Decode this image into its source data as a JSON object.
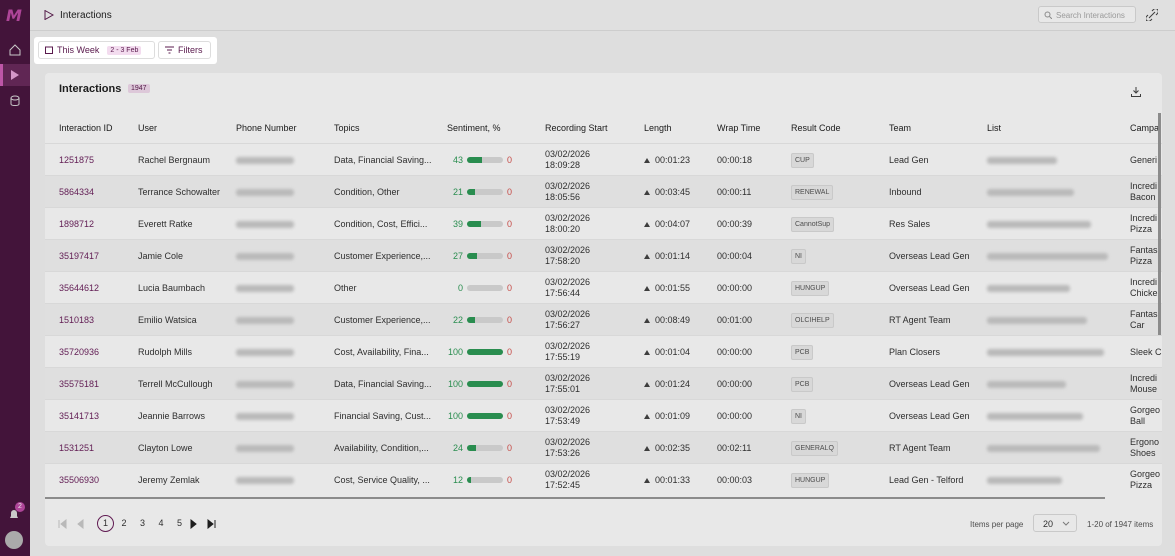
{
  "sidebar": {
    "logo": "M",
    "notification_count": "2"
  },
  "header": {
    "title": "Interactions",
    "search_placeholder": "Search Interactions"
  },
  "toolbar": {
    "date_button": "This Week",
    "date_range": "2 - 3 Feb",
    "filters_button": "Filters"
  },
  "card": {
    "title": "Interactions",
    "count": "1947"
  },
  "table": {
    "columns": [
      "Interaction ID",
      "User",
      "Phone Number",
      "Topics",
      "Sentiment, %",
      "Recording Start",
      "Length",
      "Wrap Time",
      "Result Code",
      "Team",
      "List",
      "Campa"
    ],
    "rows": [
      {
        "id": "1251875",
        "user": "Rachel Bergnaum",
        "topics": "Data, Financial Saving...",
        "sentiment_positive": 43,
        "sentiment_negative": 0,
        "recording_start": "03/02/2026 18:09:28",
        "length": "00:01:23",
        "wrap_time": "00:00:18",
        "result_code": "CUP",
        "team": "Lead Gen",
        "campaign": "Generi"
      },
      {
        "id": "5864334",
        "user": "Terrance Schowalter",
        "topics": "Condition, Other",
        "sentiment_positive": 21,
        "sentiment_negative": 0,
        "recording_start": "03/02/2026 18:05:56",
        "length": "00:03:45",
        "wrap_time": "00:00:11",
        "result_code": "RENEWAL",
        "team": "Inbound",
        "campaign": "Incredi Bacon"
      },
      {
        "id": "1898712",
        "user": "Everett Ratke",
        "topics": "Condition, Cost, Effici...",
        "sentiment_positive": 39,
        "sentiment_negative": 0,
        "recording_start": "03/02/2026 18:00:20",
        "length": "00:04:07",
        "wrap_time": "00:00:39",
        "result_code": "CannotSup",
        "team": "Res Sales",
        "campaign": "Incredi Pizza"
      },
      {
        "id": "35197417",
        "user": "Jamie Cole",
        "topics": "Customer Experience,...",
        "sentiment_positive": 27,
        "sentiment_negative": 0,
        "recording_start": "03/02/2026 17:58:20",
        "length": "00:01:14",
        "wrap_time": "00:00:04",
        "result_code": "NI",
        "team": "Overseas Lead Gen",
        "campaign": "Fantas Pizza"
      },
      {
        "id": "35644612",
        "user": "Lucia Baumbach",
        "topics": "Other",
        "sentiment_positive": 0,
        "sentiment_negative": 0,
        "recording_start": "03/02/2026 17:56:44",
        "length": "00:01:55",
        "wrap_time": "00:00:00",
        "result_code": "HUNGUP",
        "team": "Overseas Lead Gen",
        "campaign": "Incredi Chicke"
      },
      {
        "id": "1510183",
        "user": "Emilio Watsica",
        "topics": "Customer Experience,...",
        "sentiment_positive": 22,
        "sentiment_negative": 0,
        "recording_start": "03/02/2026 17:56:27",
        "length": "00:08:49",
        "wrap_time": "00:01:00",
        "result_code": "OLCIHELP",
        "team": "RT Agent Team",
        "campaign": "Fantas Car"
      },
      {
        "id": "35720936",
        "user": "Rudolph Mills",
        "topics": "Cost, Availability, Fina...",
        "sentiment_positive": 100,
        "sentiment_negative": 0,
        "recording_start": "03/02/2026 17:55:19",
        "length": "00:01:04",
        "wrap_time": "00:00:00",
        "result_code": "PCB",
        "team": "Plan Closers",
        "campaign": "Sleek C"
      },
      {
        "id": "35575181",
        "user": "Terrell McCullough",
        "topics": "Data, Financial Saving...",
        "sentiment_positive": 100,
        "sentiment_negative": 0,
        "recording_start": "03/02/2026 17:55:01",
        "length": "00:01:24",
        "wrap_time": "00:00:00",
        "result_code": "PCB",
        "team": "Overseas Lead Gen",
        "campaign": "Incredi Mouse"
      },
      {
        "id": "35141713",
        "user": "Jeannie Barrows",
        "topics": "Financial Saving, Cust...",
        "sentiment_positive": 100,
        "sentiment_negative": 0,
        "recording_start": "03/02/2026 17:53:49",
        "length": "00:01:09",
        "wrap_time": "00:00:00",
        "result_code": "NI",
        "team": "Overseas Lead Gen",
        "campaign": "Gorgeo Ball"
      },
      {
        "id": "1531251",
        "user": "Clayton Lowe",
        "topics": "Availability, Condition,...",
        "sentiment_positive": 24,
        "sentiment_negative": 0,
        "recording_start": "03/02/2026 17:53:26",
        "length": "00:02:35",
        "wrap_time": "00:02:11",
        "result_code": "GENERALQ",
        "team": "RT Agent Team",
        "campaign": "Ergono Shoes"
      },
      {
        "id": "35506930",
        "user": "Jeremy Zemlak",
        "topics": "Cost, Service Quality, ...",
        "sentiment_positive": 12,
        "sentiment_negative": 0,
        "recording_start": "03/02/2026 17:52:45",
        "length": "00:01:33",
        "wrap_time": "00:00:03",
        "result_code": "HUNGUP",
        "team": "Lead Gen - Telford",
        "campaign": "Gorgeo Pizza"
      }
    ]
  },
  "pagination": {
    "pages": [
      "1",
      "2",
      "3",
      "4",
      "5"
    ],
    "items_per_page_label": "Items per page",
    "items_per_page": "20",
    "range": "1-20 of 1947 items"
  }
}
